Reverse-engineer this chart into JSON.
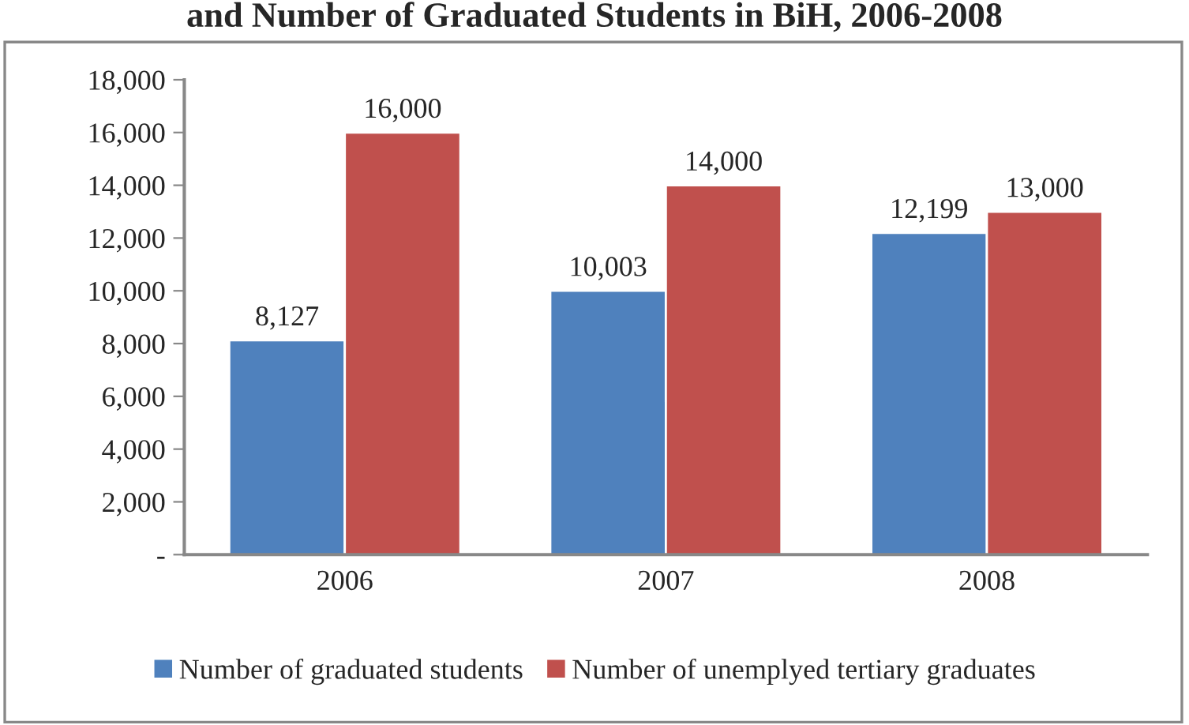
{
  "chart_data": {
    "type": "bar",
    "title": "and Number of Graduated Students in BiH, 2006-2008",
    "categories": [
      "2006",
      "2007",
      "2008"
    ],
    "series": [
      {
        "name": "Number of graduated students",
        "color": "#4f81bd",
        "values": [
          8127,
          10003,
          12199
        ]
      },
      {
        "name": "Number of unemplyed tertiary graduates",
        "color": "#c0504d",
        "values": [
          16000,
          14000,
          13000
        ]
      }
    ],
    "ylim": [
      0,
      18000
    ],
    "yticks": [
      {
        "value": 0,
        "label": "-"
      },
      {
        "value": 2000,
        "label": "2,000"
      },
      {
        "value": 4000,
        "label": "4,000"
      },
      {
        "value": 6000,
        "label": "6,000"
      },
      {
        "value": 8000,
        "label": "8,000"
      },
      {
        "value": 10000,
        "label": "10,000"
      },
      {
        "value": 12000,
        "label": "12,000"
      },
      {
        "value": 14000,
        "label": "14,000"
      },
      {
        "value": 16000,
        "label": "16,000"
      },
      {
        "value": 18000,
        "label": "18,000"
      }
    ],
    "value_labels": [
      [
        "8,127",
        "10,003",
        "12,199"
      ],
      [
        "16,000",
        "14,000",
        "13,000"
      ]
    ],
    "grid": false,
    "legend": "bottom"
  }
}
